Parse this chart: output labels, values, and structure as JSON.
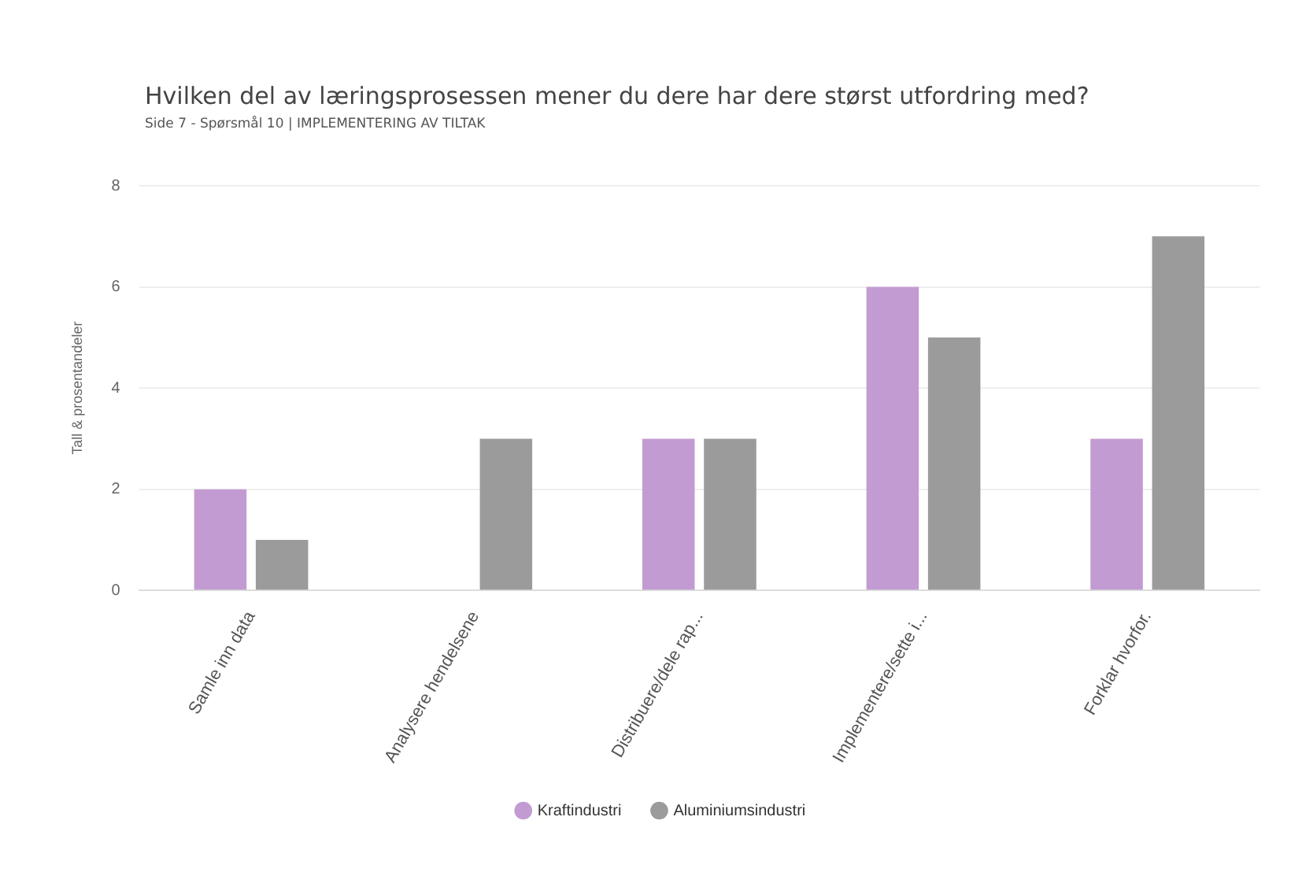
{
  "chart_data": {
    "type": "bar",
    "title": "Hvilken del av læringsprosessen mener du dere har dere størst utfordring med?",
    "subtitle": "Side 7 - Spørsmål 10 | IMPLEMENTERING AV TILTAK",
    "ylabel": "Tall & prosentandeler",
    "categories": [
      "Samle inn data",
      "Analysere hendelsene",
      "Distribuere/dele rap...",
      "Implementere/sette i...",
      "Forklar hvorfor."
    ],
    "series": [
      {
        "name": "Kraftindustri",
        "color": "#c39bd3",
        "values": [
          2,
          0,
          3,
          6,
          3
        ]
      },
      {
        "name": "Aluminiumsindustri",
        "color": "#9b9b9b",
        "values": [
          1,
          3,
          3,
          5,
          7
        ]
      }
    ],
    "ylim": [
      0,
      8
    ],
    "yticks": [
      0,
      2,
      4,
      6,
      8
    ],
    "grid": "y",
    "legend": "bottom"
  }
}
